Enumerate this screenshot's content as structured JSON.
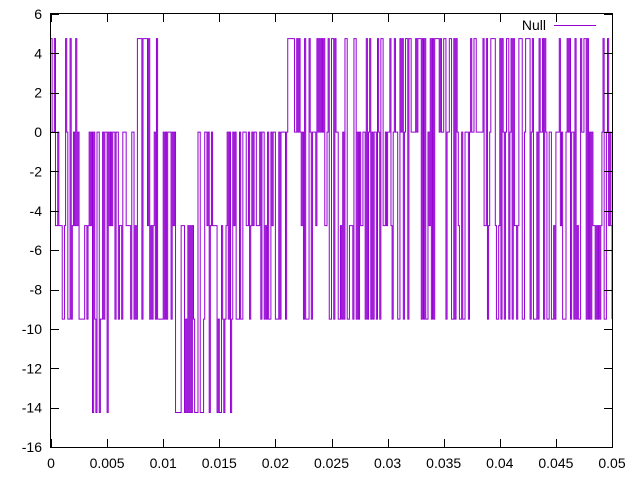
{
  "chart_data": {
    "type": "line",
    "title": "",
    "xlabel": "",
    "ylabel": "",
    "xlim": [
      0,
      0.05
    ],
    "ylim": [
      -16,
      6
    ],
    "x_ticks": [
      0,
      0.005,
      0.01,
      0.015,
      0.02,
      0.025,
      0.03,
      0.035,
      0.04,
      0.045,
      0.05
    ],
    "x_tick_labels": [
      "0",
      "0.005",
      "0.01",
      "0.015",
      "0.02",
      "0.025",
      "0.03",
      "0.035",
      "0.04",
      "0.045",
      "0.05"
    ],
    "y_ticks": [
      6,
      4,
      2,
      0,
      -2,
      -4,
      -6,
      -8,
      -10,
      -12,
      -14,
      -16
    ],
    "y_tick_labels": [
      "6",
      "4",
      "2",
      "0",
      "-2",
      "-4",
      "-6",
      "-8",
      "-10",
      "-12",
      "-14",
      "-16"
    ],
    "grid": false,
    "legend_position": "top-right",
    "levels": [
      4.75,
      0,
      -4.75,
      -9.5,
      -14.25
    ],
    "series": [
      {
        "name": "Null",
        "color": "#9400d3",
        "x_start": 0,
        "x_step": 0.0001,
        "segments": [
          {
            "x_end": 0.0027,
            "levels": [
              4.75,
              4.75,
              0,
              -4.75,
              -9.5,
              -4.75,
              0
            ]
          },
          {
            "x_end": 0.0035,
            "levels": [
              0,
              -4.75,
              -9.5,
              0,
              -9.5
            ]
          },
          {
            "x_end": 0.005,
            "levels": [
              0,
              -9.5,
              -14.25,
              0,
              -9.5,
              -14.25,
              -4.75,
              0
            ]
          },
          {
            "x_end": 0.0073,
            "levels": [
              0,
              -9.5,
              0,
              -4.75,
              -9.5,
              0
            ]
          },
          {
            "x_end": 0.0097,
            "levels": [
              4.75,
              -4.75,
              4.75,
              0,
              -9.5,
              4.75,
              -9.5
            ]
          },
          {
            "x_end": 0.011,
            "levels": [
              0,
              -9.5,
              -4.75,
              0,
              -9.5
            ]
          },
          {
            "x_end": 0.0127,
            "levels": [
              -4.75,
              -14.25,
              -4.75,
              -9.5,
              -14.25
            ]
          },
          {
            "x_end": 0.016,
            "levels": [
              0,
              -14.25,
              -9.5,
              0,
              -14.25,
              -4.75
            ]
          },
          {
            "x_end": 0.021,
            "levels": [
              0,
              -9.5,
              -4.75,
              0,
              -9.5
            ]
          },
          {
            "x_end": 0.05,
            "levels": [
              4.75,
              0,
              -9.5,
              -4.75,
              4.75,
              -9.5,
              0
            ]
          }
        ]
      }
    ]
  }
}
